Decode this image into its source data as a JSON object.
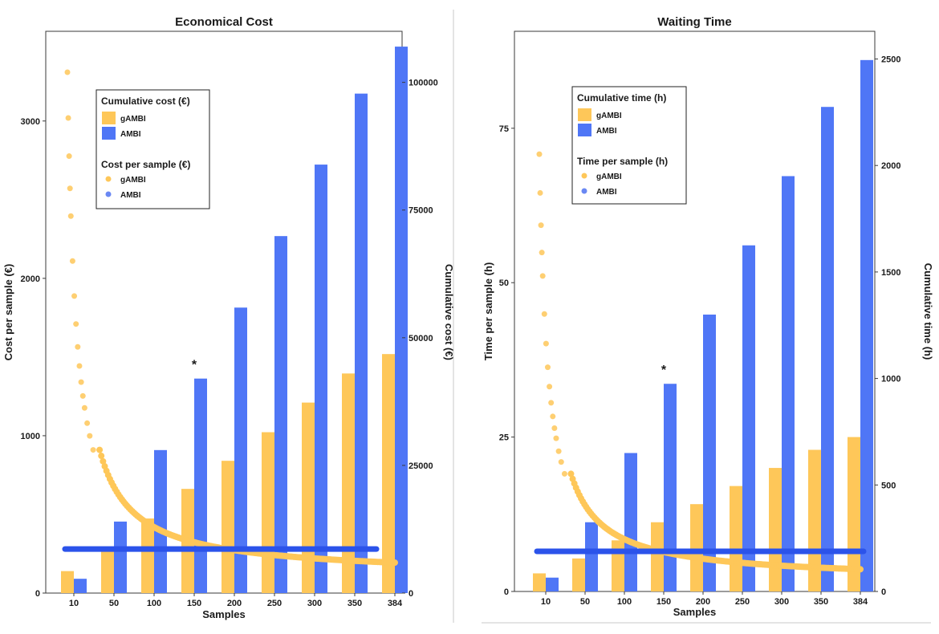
{
  "chart_data": [
    {
      "type": "bar",
      "title": "Economical Cost",
      "xlabel": "Samples",
      "ylabel_left": "Cost per sample (€)",
      "ylabel_right": "Cumulative cost (€)",
      "categories": [
        "10",
        "50",
        "100",
        "150",
        "200",
        "250",
        "300",
        "350",
        "384"
      ],
      "left_axis": {
        "ylim": [
          0,
          3570
        ],
        "ticks": [
          0,
          1000,
          2000,
          3000
        ]
      },
      "right_axis": {
        "ylim": [
          0,
          110000
        ],
        "ticks": [
          0,
          25000,
          50000,
          75000,
          100000
        ]
      },
      "bar_series": [
        {
          "name": "gAMBI",
          "color": "#fec759",
          "values": [
            4300,
            8600,
            14600,
            20400,
            25900,
            31500,
            37300,
            43000,
            46800
          ]
        },
        {
          "name": "AMBI",
          "color": "#4f76f6",
          "values": [
            2800,
            14000,
            28000,
            42000,
            55900,
            69900,
            83900,
            97800,
            107000
          ]
        }
      ],
      "per_sample_series": [
        {
          "name": "gAMBI",
          "color": "#fec759",
          "rule": "a + b/n",
          "a": 110,
          "b": 32000,
          "n_range": [
            10,
            384
          ]
        },
        {
          "name": "AMBI",
          "color": "#2b53ea",
          "value": 280,
          "n_range": [
            10,
            384
          ]
        }
      ],
      "annotations": [
        {
          "text": "*",
          "category": "150"
        }
      ],
      "legend": {
        "placement": "top-left",
        "bar_title": "Cumulative cost (€)",
        "point_title": "Cost per sample (€)",
        "entries": [
          "gAMBI",
          "AMBI"
        ]
      }
    },
    {
      "type": "bar",
      "title": "Waiting Time",
      "xlabel": "Samples",
      "ylabel_left": "Time per sample (h)",
      "ylabel_right": "Cumulative time (h)",
      "categories": [
        "10",
        "50",
        "100",
        "150",
        "200",
        "250",
        "300",
        "350",
        "384"
      ],
      "left_axis": {
        "ylim": [
          0,
          90.7
        ],
        "ticks": [
          0,
          25,
          50,
          75
        ]
      },
      "right_axis": {
        "ylim": [
          0,
          2630
        ],
        "ticks": [
          0,
          500,
          1000,
          1500,
          2000,
          2500
        ]
      },
      "bar_series": [
        {
          "name": "gAMBI",
          "color": "#fec759",
          "values": [
            85,
            155,
            240,
            325,
            410,
            495,
            580,
            665,
            725
          ]
        },
        {
          "name": "AMBI",
          "color": "#4f76f6",
          "values": [
            65,
            325,
            650,
            975,
            1300,
            1625,
            1950,
            2275,
            2495
          ]
        }
      ],
      "per_sample_series": [
        {
          "name": "gAMBI",
          "color": "#fec759",
          "rule": "a + b/n",
          "a": 1.8,
          "b": 690,
          "n_range": [
            10,
            384
          ]
        },
        {
          "name": "AMBI",
          "color": "#2b53ea",
          "value": 6.5,
          "n_range": [
            10,
            384
          ]
        }
      ],
      "annotations": [
        {
          "text": "*",
          "category": "150"
        }
      ],
      "legend": {
        "placement": "top-left",
        "bar_title": "Cumulative time (h)",
        "point_title": "Time per sample (h)",
        "entries": [
          "gAMBI",
          "AMBI"
        ]
      }
    }
  ]
}
